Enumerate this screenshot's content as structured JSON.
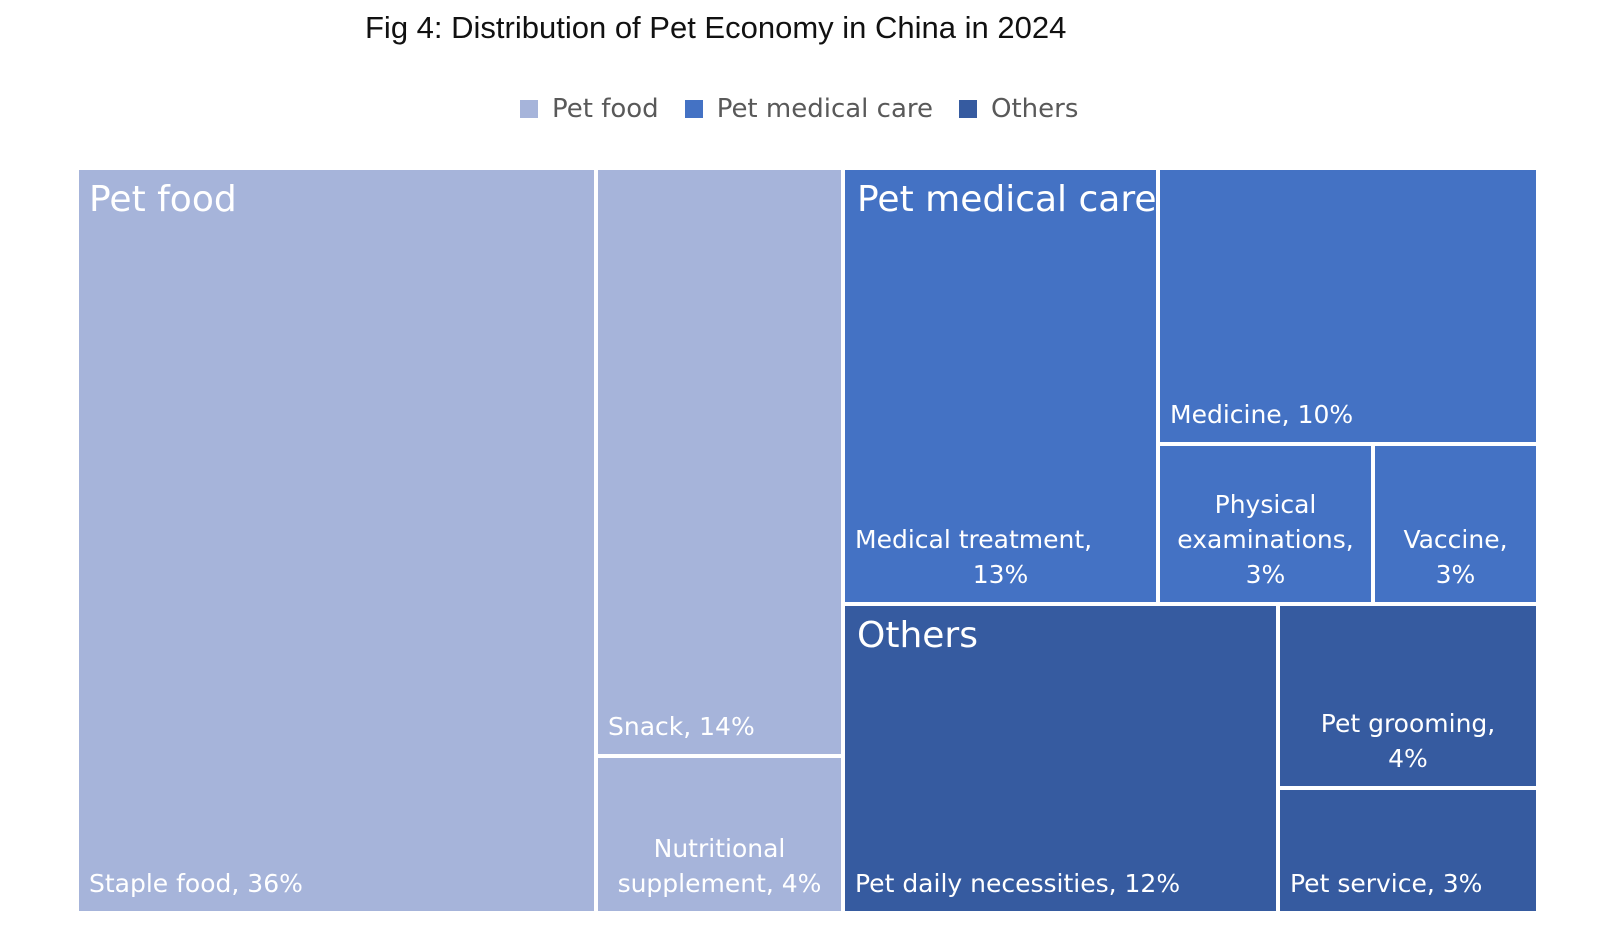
{
  "title": "Fig 4: Distribution of Pet Economy in China in 2024",
  "legend": [
    {
      "name": "Pet food",
      "color": "#a6b4da"
    },
    {
      "name": "Pet medical care",
      "color": "#4472c4"
    },
    {
      "name": "Others",
      "color": "#365ba0"
    }
  ],
  "chart_data": {
    "type": "treemap",
    "title": "Fig 4: Distribution of Pet Economy in China in 2024",
    "legend_position": "top",
    "unit": "%",
    "groups": [
      {
        "name": "Pet food",
        "color": "#a6b4da",
        "items": [
          {
            "name": "Staple food",
            "value": 36,
            "label": "Staple food, 36%"
          },
          {
            "name": "Snack",
            "value": 14,
            "label": "Snack, 14%"
          },
          {
            "name": "Nutritional supplement",
            "value": 4,
            "label": "Nutritional supplement, 4%"
          }
        ]
      },
      {
        "name": "Pet medical care",
        "color": "#4472c4",
        "items": [
          {
            "name": "Medical treatment",
            "value": 13,
            "label": "Medical treatment, 13%"
          },
          {
            "name": "Medicine",
            "value": 10,
            "label": "Medicine, 10%"
          },
          {
            "name": "Physical examinations",
            "value": 3,
            "label": "Physical examinations, 3%"
          },
          {
            "name": "Vaccine",
            "value": 3,
            "label": "Vaccine, 3%"
          }
        ]
      },
      {
        "name": "Others",
        "color": "#365ba0",
        "items": [
          {
            "name": "Pet daily necessities",
            "value": 12,
            "label": "Pet daily necessities, 12%"
          },
          {
            "name": "Pet grooming",
            "value": 4,
            "label": "Pet grooming, 4%"
          },
          {
            "name": "Pet service",
            "value": 3,
            "label": "Pet service, 3%"
          }
        ]
      }
    ]
  }
}
